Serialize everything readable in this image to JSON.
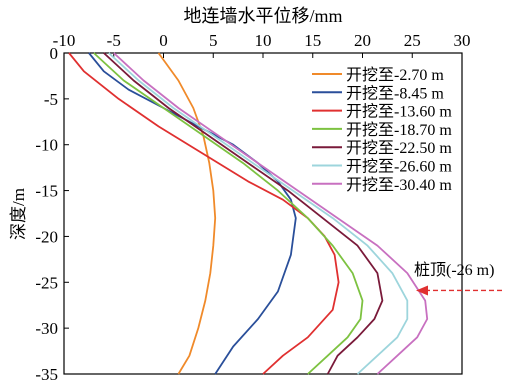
{
  "chart_data": {
    "type": "line",
    "title": "地连墙水平位移/mm",
    "xlabel": "地连墙水平位移/mm",
    "ylabel": "深度/m",
    "xlim": [
      -10,
      30
    ],
    "ylim": [
      -35,
      0
    ],
    "x_ticks": [
      -10,
      -5,
      0,
      5,
      10,
      15,
      20,
      25,
      30
    ],
    "y_ticks": [
      0,
      -5,
      -10,
      -15,
      -20,
      -25,
      -30,
      -35
    ],
    "x_axis_position": "top",
    "grid": false,
    "legend_position": "top-right",
    "annotation": {
      "text": "桩顶(-26 m)",
      "depth": -26
    },
    "series": [
      {
        "name": "开挖至-2.70 m",
        "color": "#f08a2a",
        "x": [
          -0.5,
          1.5,
          3.0,
          4.0,
          4.6,
          5.0,
          5.2,
          5.0,
          4.7,
          4.2,
          3.5,
          2.6,
          1.5
        ],
        "depth": [
          0,
          -3,
          -6,
          -9,
          -12,
          -15,
          -18,
          -21,
          -24,
          -27,
          -30,
          -33,
          -35
        ]
      },
      {
        "name": "开挖至-8.45 m",
        "color": "#2a4f9a",
        "x": [
          -7.5,
          -6.0,
          -3.5,
          0.0,
          3.5,
          7.0,
          9.5,
          11.5,
          12.8,
          13.3,
          12.8,
          11.5,
          9.5,
          7.0,
          5.2
        ],
        "depth": [
          0,
          -2,
          -4,
          -6,
          -8,
          -10,
          -12,
          -14,
          -16,
          -18,
          -22,
          -26,
          -29,
          -32,
          -35
        ]
      },
      {
        "name": "开挖至-13.60 m",
        "color": "#e03030",
        "x": [
          -9.5,
          -8.0,
          -4.5,
          -0.5,
          4.0,
          8.5,
          12.0,
          14.5,
          16.2,
          17.2,
          17.6,
          17.0,
          14.5,
          12.0,
          10.0
        ],
        "depth": [
          0,
          -2,
          -5,
          -8,
          -11,
          -14,
          -16,
          -18,
          -20,
          -22,
          -25,
          -28,
          -31,
          -33,
          -35
        ]
      },
      {
        "name": "开挖至-18.70 m",
        "color": "#7dc241",
        "x": [
          -7.0,
          -4.0,
          0.0,
          4.0,
          8.0,
          11.5,
          14.5,
          17.0,
          19.0,
          20.0,
          19.8,
          18.5,
          16.5,
          14.5
        ],
        "depth": [
          0,
          -3,
          -6,
          -9,
          -12,
          -15,
          -18,
          -21,
          -24,
          -27,
          -29,
          -31,
          -33,
          -35
        ]
      },
      {
        "name": "开挖至-22.50 m",
        "color": "#7a1a3a",
        "x": [
          -6.0,
          -3.0,
          0.5,
          4.5,
          8.5,
          12.5,
          16.0,
          19.5,
          21.5,
          22.0,
          21.2,
          19.5,
          17.5,
          16.5
        ],
        "depth": [
          0,
          -3,
          -6,
          -9,
          -12,
          -15,
          -18,
          -21,
          -24,
          -27,
          -29,
          -31,
          -33,
          -35
        ]
      },
      {
        "name": "开挖至-26.60 m",
        "color": "#9dd5dc",
        "x": [
          -5.5,
          -2.5,
          1.0,
          5.0,
          9.0,
          13.0,
          17.0,
          20.5,
          23.0,
          24.5,
          24.5,
          23.5,
          21.5,
          19.5
        ],
        "depth": [
          0,
          -3,
          -6,
          -9,
          -12,
          -15,
          -18,
          -21,
          -24,
          -27,
          -29,
          -31,
          -33,
          -35
        ]
      },
      {
        "name": "开挖至-30.40 m",
        "color": "#c870c0",
        "x": [
          -5.0,
          -2.0,
          1.5,
          5.5,
          9.5,
          13.5,
          17.5,
          21.5,
          24.5,
          26.3,
          26.5,
          25.5,
          23.5,
          21.5
        ],
        "depth": [
          0,
          -3,
          -6,
          -9,
          -12,
          -15,
          -18,
          -21,
          -24,
          -27,
          -29,
          -31,
          -33,
          -35
        ]
      }
    ]
  }
}
